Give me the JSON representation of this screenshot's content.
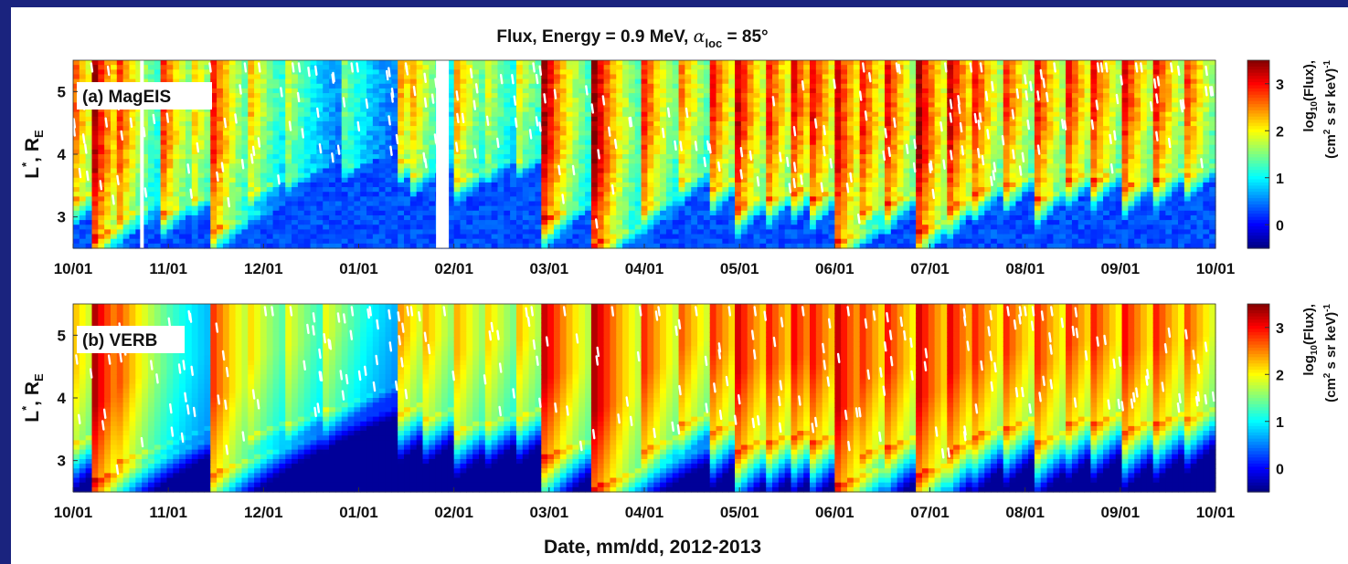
{
  "figure": {
    "title_main": "Flux, Energy = 0.9 MeV, ",
    "title_symbol": "α",
    "title_symbol_sub": "loc",
    "title_end": " = 85°",
    "xlabel": "Date, mm/dd, 2012-2013"
  },
  "chart_data": [
    {
      "type": "heatmap",
      "panel_label": "(a) MagEIS",
      "ylabel_main": "L",
      "ylabel_sup": "*",
      "ylabel_rest": ", R",
      "ylabel_sub": "E",
      "x_ticks": [
        "10/01",
        "11/01",
        "12/01",
        "01/01",
        "02/01",
        "03/01",
        "04/01",
        "05/01",
        "06/01",
        "07/01",
        "08/01",
        "09/01",
        "10/01"
      ],
      "y_ticks": [
        "3",
        "4",
        "5"
      ],
      "ylim": [
        2.5,
        5.5
      ],
      "colorbar": {
        "label_main": "log",
        "label_sub": "10",
        "label_rest": "(Flux),",
        "units_a": "(cm",
        "units_sup": "2",
        "units_b": " s sr keV)",
        "units_sup2": "-1",
        "ticks": [
          "0",
          "1",
          "2",
          "3"
        ],
        "range": [
          -0.5,
          3.5
        ]
      },
      "data_gaps": [
        "10/23",
        "01/27"
      ],
      "injections": [
        {
          "date": "10/02",
          "strength": 2.6,
          "low_L": 3.3
        },
        {
          "date": "10/08",
          "strength": 3.3,
          "low_L": 2.7
        },
        {
          "date": "10/15",
          "strength": 3.0,
          "low_L": 3.0
        },
        {
          "date": "10/30",
          "strength": 2.8,
          "low_L": 3.1
        },
        {
          "date": "11/08",
          "strength": 2.3,
          "low_L": 3.3
        },
        {
          "date": "11/14",
          "strength": 3.1,
          "low_L": 2.8
        },
        {
          "date": "11/26",
          "strength": 2.4,
          "low_L": 3.4
        },
        {
          "date": "12/08",
          "strength": 1.9,
          "low_L": 3.6
        },
        {
          "date": "12/27",
          "strength": 1.5,
          "low_L": 3.8
        },
        {
          "date": "01/14",
          "strength": 2.4,
          "low_L": 3.9
        },
        {
          "date": "01/18",
          "strength": 2.3,
          "low_L": 3.7
        },
        {
          "date": "02/01",
          "strength": 2.4,
          "low_L": 3.6
        },
        {
          "date": "02/10",
          "strength": 2.0,
          "low_L": 3.8
        },
        {
          "date": "02/20",
          "strength": 2.1,
          "low_L": 3.9
        },
        {
          "date": "03/01",
          "strength": 3.3,
          "low_L": 3.0
        },
        {
          "date": "03/17",
          "strength": 3.4,
          "low_L": 2.6
        },
        {
          "date": "04/01",
          "strength": 3.0,
          "low_L": 3.2
        },
        {
          "date": "04/13",
          "strength": 2.6,
          "low_L": 3.6
        },
        {
          "date": "04/23",
          "strength": 3.0,
          "low_L": 3.5
        },
        {
          "date": "05/01",
          "strength": 3.3,
          "low_L": 3.2
        },
        {
          "date": "05/10",
          "strength": 3.2,
          "low_L": 3.3
        },
        {
          "date": "05/18",
          "strength": 3.3,
          "low_L": 3.4
        },
        {
          "date": "05/25",
          "strength": 3.1,
          "low_L": 3.3
        },
        {
          "date": "06/01",
          "strength": 3.4,
          "low_L": 2.6
        },
        {
          "date": "06/09",
          "strength": 3.2,
          "low_L": 3.1
        },
        {
          "date": "06/17",
          "strength": 3.3,
          "low_L": 3.2
        },
        {
          "date": "06/28",
          "strength": 3.4,
          "low_L": 2.8
        },
        {
          "date": "07/08",
          "strength": 3.3,
          "low_L": 3.2
        },
        {
          "date": "07/16",
          "strength": 3.0,
          "low_L": 3.4
        },
        {
          "date": "07/25",
          "strength": 3.1,
          "low_L": 3.5
        },
        {
          "date": "08/04",
          "strength": 3.2,
          "low_L": 3.3
        },
        {
          "date": "08/14",
          "strength": 3.2,
          "low_L": 3.6
        },
        {
          "date": "08/23",
          "strength": 3.0,
          "low_L": 3.6
        },
        {
          "date": "09/02",
          "strength": 3.1,
          "low_L": 3.5
        },
        {
          "date": "09/12",
          "strength": 3.0,
          "low_L": 3.6
        },
        {
          "date": "09/22",
          "strength": 2.8,
          "low_L": 3.7
        }
      ]
    },
    {
      "type": "heatmap",
      "panel_label": "(b) VERB",
      "ylabel_main": "L",
      "ylabel_sup": "*",
      "ylabel_rest": ", R",
      "ylabel_sub": "E",
      "x_ticks": [
        "10/01",
        "11/01",
        "12/01",
        "01/01",
        "02/01",
        "03/01",
        "04/01",
        "05/01",
        "06/01",
        "07/01",
        "08/01",
        "09/01",
        "10/01"
      ],
      "y_ticks": [
        "3",
        "4",
        "5"
      ],
      "ylim": [
        2.5,
        5.5
      ],
      "colorbar": {
        "label_main": "log",
        "label_sub": "10",
        "label_rest": "(Flux),",
        "units_a": "(cm",
        "units_sup": "2",
        "units_b": " s sr keV)",
        "units_sup2": "-1",
        "ticks": [
          "0",
          "1",
          "2",
          "3"
        ],
        "range": [
          -0.5,
          3.5
        ]
      },
      "data_gaps": [],
      "injections": [
        {
          "date": "10/02",
          "strength": 2.2,
          "low_L": 3.3
        },
        {
          "date": "10/08",
          "strength": 3.3,
          "low_L": 2.7
        },
        {
          "date": "10/15",
          "strength": 2.8,
          "low_L": 3.0
        },
        {
          "date": "11/14",
          "strength": 2.9,
          "low_L": 2.8
        },
        {
          "date": "11/26",
          "strength": 2.2,
          "low_L": 3.4
        },
        {
          "date": "12/08",
          "strength": 2.0,
          "low_L": 3.6
        },
        {
          "date": "12/20",
          "strength": 2.0,
          "low_L": 3.8
        },
        {
          "date": "01/14",
          "strength": 2.4,
          "low_L": 3.8
        },
        {
          "date": "01/22",
          "strength": 2.3,
          "low_L": 3.7
        },
        {
          "date": "02/01",
          "strength": 2.3,
          "low_L": 3.5
        },
        {
          "date": "02/10",
          "strength": 2.2,
          "low_L": 3.6
        },
        {
          "date": "02/20",
          "strength": 2.3,
          "low_L": 3.7
        },
        {
          "date": "03/01",
          "strength": 3.2,
          "low_L": 3.1
        },
        {
          "date": "03/17",
          "strength": 3.3,
          "low_L": 2.6
        },
        {
          "date": "04/01",
          "strength": 2.9,
          "low_L": 3.2
        },
        {
          "date": "04/13",
          "strength": 2.7,
          "low_L": 3.6
        },
        {
          "date": "04/23",
          "strength": 2.9,
          "low_L": 3.5
        },
        {
          "date": "05/01",
          "strength": 3.2,
          "low_L": 3.2
        },
        {
          "date": "05/10",
          "strength": 3.1,
          "low_L": 3.3
        },
        {
          "date": "05/18",
          "strength": 3.2,
          "low_L": 3.4
        },
        {
          "date": "05/25",
          "strength": 3.0,
          "low_L": 3.3
        },
        {
          "date": "06/01",
          "strength": 3.4,
          "low_L": 2.6
        },
        {
          "date": "06/09",
          "strength": 3.0,
          "low_L": 3.1
        },
        {
          "date": "06/17",
          "strength": 3.1,
          "low_L": 3.2
        },
        {
          "date": "06/28",
          "strength": 3.2,
          "low_L": 2.8
        },
        {
          "date": "07/08",
          "strength": 3.1,
          "low_L": 3.2
        },
        {
          "date": "07/16",
          "strength": 2.9,
          "low_L": 3.4
        },
        {
          "date": "07/25",
          "strength": 3.0,
          "low_L": 3.5
        },
        {
          "date": "08/04",
          "strength": 3.0,
          "low_L": 3.3
        },
        {
          "date": "08/14",
          "strength": 3.0,
          "low_L": 3.6
        },
        {
          "date": "08/23",
          "strength": 2.9,
          "low_L": 3.6
        },
        {
          "date": "09/02",
          "strength": 3.0,
          "low_L": 3.5
        },
        {
          "date": "09/12",
          "strength": 2.9,
          "low_L": 3.6
        },
        {
          "date": "09/22",
          "strength": 2.7,
          "low_L": 3.7
        }
      ]
    }
  ]
}
